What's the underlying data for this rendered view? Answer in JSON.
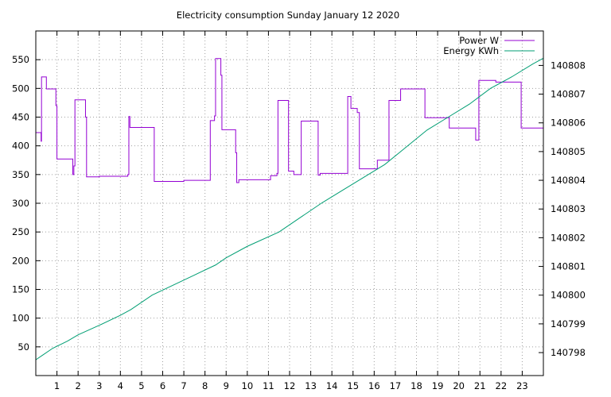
{
  "chart_data": {
    "type": "line",
    "title": "Electricity consumption Sunday January 12 2020",
    "xlabel": "",
    "ylabel": "",
    "y2label": "",
    "xlim": [
      0,
      24
    ],
    "ylim": [
      0,
      600
    ],
    "y2lim": [
      140797.2,
      140809.2
    ],
    "grid": true,
    "legend_position": "top-right",
    "x_ticks": [
      1,
      2,
      3,
      4,
      5,
      6,
      7,
      8,
      9,
      10,
      11,
      12,
      13,
      14,
      15,
      16,
      17,
      18,
      19,
      20,
      21,
      22,
      23
    ],
    "y_ticks": [
      50,
      100,
      150,
      200,
      250,
      300,
      350,
      400,
      450,
      500,
      550
    ],
    "y2_ticks": [
      140798,
      140799,
      140800,
      140801,
      140802,
      140803,
      140804,
      140805,
      140806,
      140807,
      140808
    ],
    "series": [
      {
        "name": "Power W",
        "axis": "y1",
        "color": "#9400d3",
        "step": true,
        "points": [
          [
            0.0,
            423
          ],
          [
            0.25,
            408
          ],
          [
            0.27,
            520
          ],
          [
            0.5,
            499
          ],
          [
            0.95,
            470
          ],
          [
            1.0,
            377
          ],
          [
            1.75,
            350
          ],
          [
            1.8,
            365
          ],
          [
            1.85,
            480
          ],
          [
            2.35,
            450
          ],
          [
            2.4,
            346
          ],
          [
            3.0,
            347
          ],
          [
            4.35,
            350
          ],
          [
            4.4,
            451
          ],
          [
            4.45,
            432
          ],
          [
            5.6,
            338
          ],
          [
            7.0,
            340
          ],
          [
            8.25,
            444
          ],
          [
            8.45,
            452
          ],
          [
            8.5,
            552
          ],
          [
            8.75,
            523
          ],
          [
            8.8,
            428
          ],
          [
            9.45,
            388
          ],
          [
            9.5,
            336
          ],
          [
            9.6,
            341
          ],
          [
            11.1,
            348
          ],
          [
            11.4,
            352
          ],
          [
            11.45,
            479
          ],
          [
            11.95,
            356
          ],
          [
            12.2,
            350
          ],
          [
            12.55,
            443
          ],
          [
            13.35,
            349
          ],
          [
            13.45,
            352
          ],
          [
            14.75,
            486
          ],
          [
            14.9,
            465
          ],
          [
            15.2,
            458
          ],
          [
            15.3,
            360
          ],
          [
            16.15,
            375
          ],
          [
            16.7,
            479
          ],
          [
            17.25,
            499
          ],
          [
            18.4,
            449
          ],
          [
            19.55,
            431
          ],
          [
            20.8,
            410
          ],
          [
            20.95,
            514
          ],
          [
            21.75,
            511
          ],
          [
            22.95,
            431
          ],
          [
            24.0,
            431
          ]
        ]
      },
      {
        "name": "Energy KWh",
        "axis": "y2",
        "color": "#009e73",
        "step": false,
        "points": [
          [
            0.0,
            140797.75
          ],
          [
            0.3,
            140797.9
          ],
          [
            0.8,
            140798.15
          ],
          [
            1.5,
            140798.4
          ],
          [
            2.0,
            140798.62
          ],
          [
            3.0,
            140798.95
          ],
          [
            4.0,
            140799.3
          ],
          [
            4.5,
            140799.5
          ],
          [
            5.5,
            140800.0
          ],
          [
            6.5,
            140800.35
          ],
          [
            7.5,
            140800.7
          ],
          [
            8.5,
            140801.05
          ],
          [
            9.0,
            140801.3
          ],
          [
            10.0,
            140801.7
          ],
          [
            11.5,
            140802.2
          ],
          [
            12.5,
            140802.7
          ],
          [
            13.5,
            140803.2
          ],
          [
            14.5,
            140803.65
          ],
          [
            15.5,
            140804.1
          ],
          [
            16.5,
            140804.55
          ],
          [
            17.5,
            140805.15
          ],
          [
            18.5,
            140805.75
          ],
          [
            19.5,
            140806.2
          ],
          [
            20.5,
            140806.65
          ],
          [
            21.5,
            140807.2
          ],
          [
            22.5,
            140807.6
          ],
          [
            23.5,
            140808.05
          ],
          [
            24.0,
            140808.25
          ]
        ]
      }
    ]
  }
}
